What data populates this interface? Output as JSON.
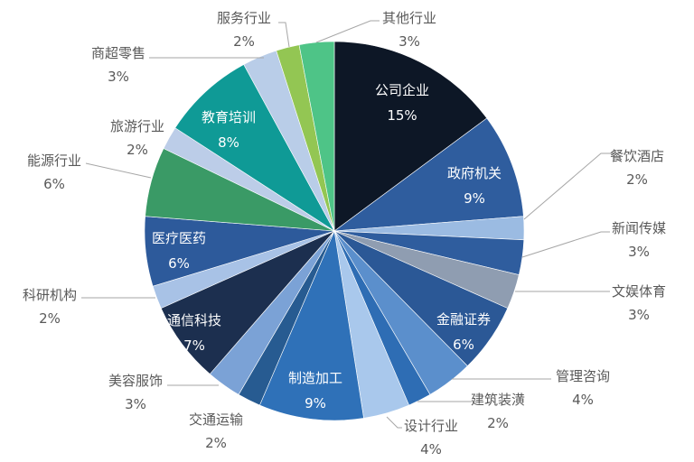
{
  "chart_data": {
    "type": "pie",
    "title": "",
    "center": [
      370,
      256
    ],
    "radius": 210,
    "start_angle_deg": 0,
    "direction": "clockwise",
    "unit": "%",
    "slices": [
      {
        "label": "公司企业",
        "value": 15,
        "color": "#0d1726",
        "label_pos": "inside"
      },
      {
        "label": "政府机关",
        "value": 9,
        "color": "#2f5d9e",
        "label_pos": "inside"
      },
      {
        "label": "餐饮酒店",
        "value": 2,
        "color": "#9bbbe2",
        "label_pos": "outside"
      },
      {
        "label": "新闻传媒",
        "value": 3,
        "color": "#2f5d9e",
        "label_pos": "outside"
      },
      {
        "label": "文娱体育",
        "value": 3,
        "color": "#8f9db1",
        "label_pos": "outside"
      },
      {
        "label": "金融证券",
        "value": 6,
        "color": "#2b5896",
        "label_pos": "inside"
      },
      {
        "label": "管理咨询",
        "value": 4,
        "color": "#5b8fcc",
        "label_pos": "outside"
      },
      {
        "label": "建筑装潢",
        "value": 2,
        "color": "#2e6db4",
        "label_pos": "outside"
      },
      {
        "label": "设计行业",
        "value": 4,
        "color": "#a9c8ec",
        "label_pos": "outside"
      },
      {
        "label": "制造加工",
        "value": 9,
        "color": "#2f71b8",
        "label_pos": "inside"
      },
      {
        "label": "交通运输",
        "value": 2,
        "color": "#275b91",
        "label_pos": "outside"
      },
      {
        "label": "美容服饰",
        "value": 3,
        "color": "#7ba2d6",
        "label_pos": "outside"
      },
      {
        "label": "通信科技",
        "value": 7,
        "color": "#1c2f4f",
        "label_pos": "inside"
      },
      {
        "label": "科研机构",
        "value": 2,
        "color": "#a8c2e6",
        "label_pos": "outside"
      },
      {
        "label": "医疗医药",
        "value": 6,
        "color": "#2d5a9b",
        "label_pos": "inside"
      },
      {
        "label": "能源行业",
        "value": 6,
        "color": "#3a9a66",
        "label_pos": "outside"
      },
      {
        "label": "旅游行业",
        "value": 2,
        "color": "#bccde8",
        "label_pos": "outside"
      },
      {
        "label": "教育培训",
        "value": 8,
        "color": "#0f9a96",
        "label_pos": "inside"
      },
      {
        "label": "商超零售",
        "value": 3,
        "color": "#b9cde8",
        "label_pos": "outside"
      },
      {
        "label": "服务行业",
        "value": 2,
        "color": "#93c653",
        "label_pos": "outside"
      },
      {
        "label": "其他行业",
        "value": 3,
        "color": "#4ec487",
        "label_pos": "outside"
      }
    ],
    "legend": null,
    "leader_line_color": "#a6a6a6"
  },
  "labels": {
    "s0": {
      "name": "公司企业",
      "pct": "15%"
    },
    "s1": {
      "name": "政府机关",
      "pct": "9%"
    },
    "s2": {
      "name": "餐饮酒店",
      "pct": "2%"
    },
    "s3": {
      "name": "新闻传媒",
      "pct": "3%"
    },
    "s4": {
      "name": "文娱体育",
      "pct": "3%"
    },
    "s5": {
      "name": "金融证券",
      "pct": "6%"
    },
    "s6": {
      "name": "管理咨询",
      "pct": "4%"
    },
    "s7": {
      "name": "建筑装潢",
      "pct": "2%"
    },
    "s8": {
      "name": "设计行业",
      "pct": "4%"
    },
    "s9": {
      "name": "制造加工",
      "pct": "9%"
    },
    "s10": {
      "name": "交通运输",
      "pct": "2%"
    },
    "s11": {
      "name": "美容服饰",
      "pct": "3%"
    },
    "s12": {
      "name": "通信科技",
      "pct": "7%"
    },
    "s13": {
      "name": "科研机构",
      "pct": "2%"
    },
    "s14": {
      "name": "医疗医药",
      "pct": "6%"
    },
    "s15": {
      "name": "能源行业",
      "pct": "6%"
    },
    "s16": {
      "name": "旅游行业",
      "pct": "2%"
    },
    "s17": {
      "name": "教育培训",
      "pct": "8%"
    },
    "s18": {
      "name": "商超零售",
      "pct": "3%"
    },
    "s19": {
      "name": "服务行业",
      "pct": "2%"
    },
    "s20": {
      "name": "其他行业",
      "pct": "3%"
    }
  }
}
